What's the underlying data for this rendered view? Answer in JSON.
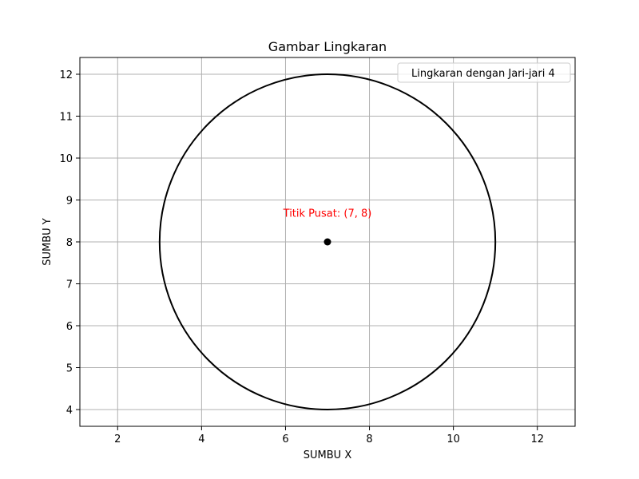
{
  "chart_data": {
    "type": "scatter",
    "title": "Gambar Lingkaran",
    "xlabel": "SUMBU X",
    "ylabel": "SUMBU Y",
    "xlim": [
      1.1,
      12.9
    ],
    "ylim": [
      3.6,
      12.4
    ],
    "xticks": [
      2,
      4,
      6,
      8,
      10,
      12
    ],
    "yticks": [
      4,
      5,
      6,
      7,
      8,
      9,
      10,
      11,
      12
    ],
    "grid": true,
    "legend_position": "top-right",
    "series": [
      {
        "name": "Lingkaran dengan Jari-jari 4",
        "kind": "circle",
        "center": [
          7,
          8
        ],
        "radius": 4,
        "color": "#000000"
      }
    ],
    "points": [
      {
        "x": 7,
        "y": 8,
        "color": "#000000"
      }
    ],
    "annotations": [
      {
        "text": "Titik Pusat: (7, 8)",
        "x": 7,
        "y": 8.6,
        "color": "#ff0000"
      }
    ]
  }
}
